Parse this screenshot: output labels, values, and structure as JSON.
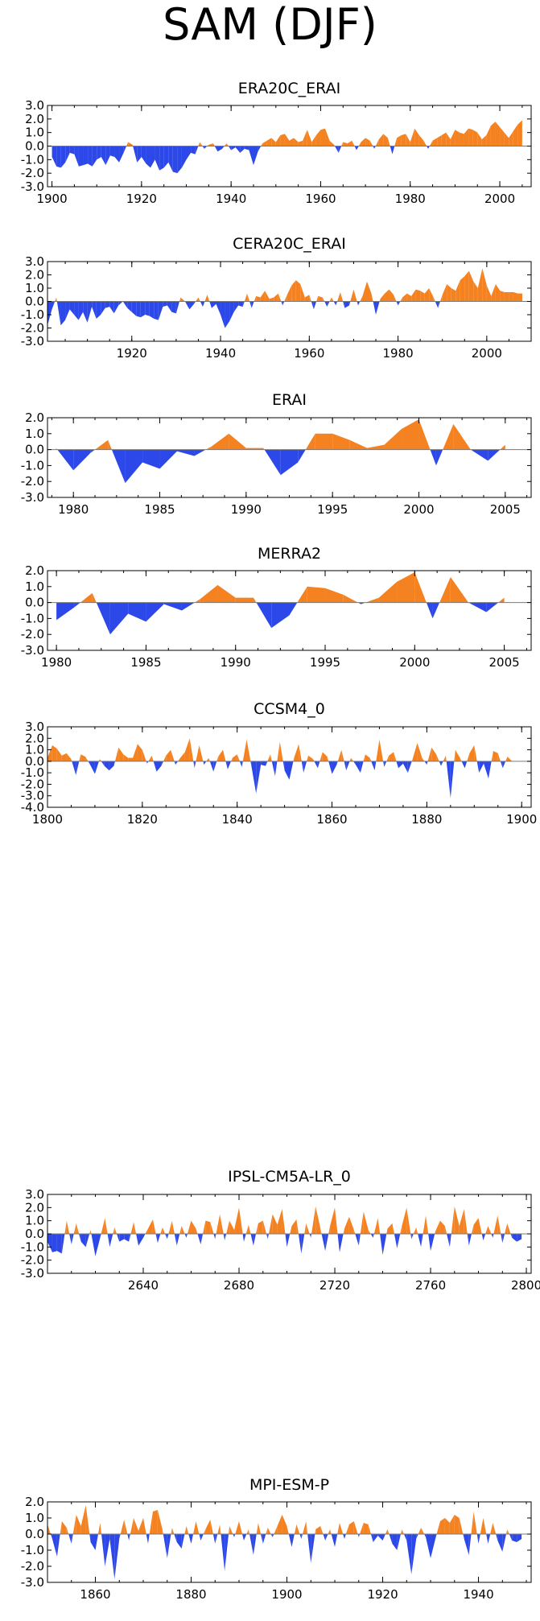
{
  "figure": {
    "title": "SAM (DJF)"
  },
  "colors": {
    "positive": "#f58220",
    "negative": "#2d48e8",
    "axis": "#000000",
    "zero_line": "#7a7a7a"
  },
  "chart_data": [
    {
      "type": "area",
      "title": "ERA20C_ERAI",
      "xlim": [
        1899,
        2007
      ],
      "ylim": [
        -3,
        3
      ],
      "xticks": [
        1900,
        1920,
        1940,
        1960,
        1980,
        2000
      ],
      "yticks": [
        3.0,
        2.0,
        1.0,
        0.0,
        -1.0,
        -2.0,
        -3.0
      ],
      "ytick_labels": [
        "3.0",
        "2.0",
        "1.0",
        "0.0",
        "-1.0",
        "-2.0",
        "-3.0"
      ],
      "x": [
        1900,
        1901,
        1902,
        1903,
        1904,
        1905,
        1906,
        1907,
        1908,
        1909,
        1910,
        1911,
        1912,
        1913,
        1914,
        1915,
        1916,
        1917,
        1918,
        1919,
        1920,
        1921,
        1922,
        1923,
        1924,
        1925,
        1926,
        1927,
        1928,
        1929,
        1930,
        1931,
        1932,
        1933,
        1934,
        1935,
        1936,
        1937,
        1938,
        1939,
        1940,
        1941,
        1942,
        1943,
        1944,
        1945,
        1946,
        1947,
        1948,
        1949,
        1950,
        1951,
        1952,
        1953,
        1954,
        1955,
        1956,
        1957,
        1958,
        1959,
        1960,
        1961,
        1962,
        1963,
        1964,
        1965,
        1966,
        1967,
        1968,
        1969,
        1970,
        1971,
        1972,
        1973,
        1974,
        1975,
        1976,
        1977,
        1978,
        1979,
        1980,
        1981,
        1982,
        1983,
        1984,
        1985,
        1986,
        1987,
        1988,
        1989,
        1990,
        1991,
        1992,
        1993,
        1994,
        1995,
        1996,
        1997,
        1998,
        1999,
        2000,
        2001,
        2002,
        2003,
        2004,
        2005
      ],
      "values": [
        -0.8,
        -1.5,
        -1.6,
        -1.2,
        -0.5,
        -0.6,
        -1.5,
        -1.4,
        -1.3,
        -1.5,
        -1.0,
        -0.8,
        -1.4,
        -0.7,
        -0.8,
        -1.2,
        -0.5,
        0.3,
        0.1,
        -1.2,
        -0.8,
        -1.3,
        -1.6,
        -1.0,
        -1.8,
        -1.6,
        -1.2,
        -1.9,
        -2.0,
        -1.6,
        -1.0,
        -0.5,
        -0.6,
        0.3,
        -0.2,
        0.1,
        0.2,
        -0.4,
        -0.2,
        0.2,
        -0.3,
        -0.1,
        -0.5,
        -0.2,
        -0.3,
        -1.4,
        -0.4,
        0.2,
        0.4,
        0.6,
        0.3,
        0.8,
        0.9,
        0.4,
        0.6,
        0.3,
        0.4,
        1.2,
        0.3,
        0.8,
        1.2,
        1.3,
        0.4,
        0.1,
        -0.5,
        0.3,
        0.2,
        0.4,
        -0.3,
        0.3,
        0.6,
        0.4,
        -0.2,
        0.5,
        0.9,
        0.6,
        -0.6,
        0.6,
        0.8,
        0.9,
        0.3,
        1.3,
        0.8,
        0.4,
        -0.2,
        0.4,
        0.6,
        0.8,
        1.0,
        0.5,
        1.2,
        1.0,
        0.9,
        1.3,
        1.2,
        1.0,
        0.5,
        0.8,
        1.5,
        1.8,
        1.4,
        1.0,
        0.6,
        1.1,
        1.6,
        1.9
      ],
      "y_range_shown": [
        -3,
        3
      ]
    },
    {
      "type": "area",
      "title": "CERA20C_ERAI",
      "xlim": [
        1901,
        2010
      ],
      "ylim": [
        -3,
        3
      ],
      "xticks": [
        1920,
        1940,
        1960,
        1980,
        2000
      ],
      "yticks": [
        3.0,
        2.0,
        1.0,
        0.0,
        -1.0,
        -2.0,
        -3.0
      ],
      "ytick_labels": [
        "3.0",
        "2.0",
        "1.0",
        "0.0",
        "-1.0",
        "-2.0",
        "-3.0"
      ],
      "x": [
        1901,
        1902,
        1903,
        1904,
        1905,
        1906,
        1907,
        1908,
        1909,
        1910,
        1911,
        1912,
        1913,
        1914,
        1915,
        1916,
        1917,
        1918,
        1919,
        1920,
        1921,
        1922,
        1923,
        1924,
        1925,
        1926,
        1927,
        1928,
        1929,
        1930,
        1931,
        1932,
        1933,
        1934,
        1935,
        1936,
        1937,
        1938,
        1939,
        1940,
        1941,
        1942,
        1943,
        1944,
        1945,
        1946,
        1947,
        1948,
        1949,
        1950,
        1951,
        1952,
        1953,
        1954,
        1955,
        1956,
        1957,
        1958,
        1959,
        1960,
        1961,
        1962,
        1963,
        1964,
        1965,
        1966,
        1967,
        1968,
        1969,
        1970,
        1971,
        1972,
        1973,
        1974,
        1975,
        1976,
        1977,
        1978,
        1979,
        1980,
        1981,
        1982,
        1983,
        1984,
        1985,
        1986,
        1987,
        1988,
        1989,
        1990,
        1991,
        1992,
        1993,
        1994,
        1995,
        1996,
        1997,
        1998,
        1999,
        2000,
        2001,
        2002,
        2003,
        2004,
        2005,
        2006,
        2007,
        2008
      ],
      "values": [
        -1.8,
        -0.6,
        0.3,
        -1.8,
        -1.4,
        -0.6,
        -1.0,
        -1.4,
        -0.8,
        -1.6,
        -0.4,
        -1.3,
        -1.0,
        -0.5,
        -0.4,
        -0.9,
        -0.3,
        0.0,
        -0.5,
        -0.8,
        -1.1,
        -1.2,
        -1.0,
        -1.1,
        -1.3,
        -1.4,
        -0.4,
        -0.3,
        -0.8,
        -0.9,
        0.3,
        0.0,
        -0.6,
        -0.2,
        0.3,
        -0.4,
        0.5,
        -0.5,
        -0.2,
        -1.0,
        -2.0,
        -1.5,
        -0.8,
        -0.3,
        -0.4,
        0.6,
        -0.5,
        0.4,
        0.3,
        0.8,
        0.2,
        0.3,
        0.6,
        -0.3,
        0.5,
        1.2,
        1.6,
        1.3,
        0.3,
        0.5,
        -0.6,
        0.4,
        0.3,
        -0.4,
        0.3,
        -0.3,
        0.7,
        -0.5,
        -0.3,
        0.9,
        -0.3,
        0.4,
        1.5,
        0.6,
        -1.0,
        0.2,
        0.6,
        0.9,
        0.5,
        -0.3,
        0.3,
        0.6,
        0.4,
        0.9,
        0.8,
        0.6,
        1.0,
        0.3,
        -0.5,
        0.5,
        1.3,
        1.0,
        0.8,
        1.6,
        1.9,
        2.3,
        1.5,
        1.0,
        2.5,
        1.2,
        0.4,
        1.3,
        0.8,
        0.7,
        0.7,
        0.7,
        0.6,
        0.6
      ],
      "y_range_shown": [
        -3,
        3
      ]
    },
    {
      "type": "area",
      "title": "ERAI",
      "xlim": [
        1978.5,
        2006.5
      ],
      "ylim": [
        -3,
        2
      ],
      "xticks": [
        1980,
        1985,
        1990,
        1995,
        2000,
        2005
      ],
      "yticks": [
        2.0,
        1.0,
        0.0,
        -1.0,
        -2.0,
        -3.0
      ],
      "ytick_labels": [
        "2.0",
        "1.0",
        "0.0",
        "-1.0",
        "-2.0",
        "-3.0"
      ],
      "x": [
        1979,
        1980,
        1981,
        1982,
        1983,
        1984,
        1985,
        1986,
        1987,
        1988,
        1989,
        1990,
        1991,
        1992,
        1993,
        1994,
        1995,
        1996,
        1997,
        1998,
        1999,
        2000,
        2001,
        2002,
        2003,
        2004,
        2005
      ],
      "values": [
        0.1,
        -1.3,
        -0.2,
        0.6,
        -2.1,
        -0.8,
        -1.2,
        -0.1,
        -0.4,
        0.2,
        1.0,
        0.1,
        0.1,
        -1.6,
        -0.8,
        1.0,
        1.0,
        0.6,
        0.1,
        0.3,
        1.3,
        1.9,
        -1.0,
        1.6,
        0.0,
        -0.7,
        0.3
      ]
    },
    {
      "type": "area",
      "title": "MERRA2",
      "xlim": [
        1979.5,
        2006.5
      ],
      "ylim": [
        -3,
        2
      ],
      "xticks": [
        1980,
        1985,
        1990,
        1995,
        2000,
        2005
      ],
      "yticks": [
        2.0,
        1.0,
        0.0,
        -1.0,
        -2.0,
        -3.0
      ],
      "ytick_labels": [
        "2.0",
        "1.0",
        "0.0",
        "-1.0",
        "-2.0",
        "-3.0"
      ],
      "x": [
        1980,
        1981,
        1982,
        1983,
        1984,
        1985,
        1986,
        1987,
        1988,
        1989,
        1990,
        1991,
        1992,
        1993,
        1994,
        1995,
        1996,
        1997,
        1998,
        1999,
        2000,
        2001,
        2002,
        2003,
        2004,
        2005
      ],
      "values": [
        -1.1,
        -0.3,
        0.6,
        -2.0,
        -0.7,
        -1.2,
        -0.1,
        -0.5,
        0.2,
        1.1,
        0.3,
        0.3,
        -1.6,
        -0.8,
        1.0,
        0.9,
        0.5,
        -0.1,
        0.3,
        1.3,
        1.9,
        -1.0,
        1.6,
        0.0,
        -0.6,
        0.3
      ]
    },
    {
      "type": "area",
      "title": "CCSM4_0",
      "xlim": [
        1800,
        1902
      ],
      "ylim": [
        -4,
        3
      ],
      "xticks": [
        1800,
        1820,
        1840,
        1860,
        1880,
        1900
      ],
      "yticks": [
        3.0,
        2.0,
        1.0,
        0.0,
        -1.0,
        -2.0,
        -3.0,
        -4.0
      ],
      "ytick_labels": [
        "3.0",
        "2.0",
        "1.0",
        "0.0",
        "-1.0",
        "-2.0",
        "-3.0",
        "-4.0"
      ],
      "x": [
        1800,
        1801,
        1802,
        1803,
        1804,
        1805,
        1806,
        1807,
        1808,
        1809,
        1810,
        1811,
        1812,
        1813,
        1814,
        1815,
        1816,
        1817,
        1818,
        1819,
        1820,
        1821,
        1822,
        1823,
        1824,
        1825,
        1826,
        1827,
        1828,
        1829,
        1830,
        1831,
        1832,
        1833,
        1834,
        1835,
        1836,
        1837,
        1838,
        1839,
        1840,
        1841,
        1842,
        1843,
        1844,
        1845,
        1846,
        1847,
        1848,
        1849,
        1850,
        1851,
        1852,
        1853,
        1854,
        1855,
        1856,
        1857,
        1858,
        1859,
        1860,
        1861,
        1862,
        1863,
        1864,
        1865,
        1866,
        1867,
        1868,
        1869,
        1870,
        1871,
        1872,
        1873,
        1874,
        1875,
        1876,
        1877,
        1878,
        1879,
        1880,
        1881,
        1882,
        1883,
        1884,
        1885,
        1886,
        1887,
        1888,
        1889,
        1890,
        1891,
        1892,
        1893,
        1894,
        1895,
        1896,
        1897,
        1898
      ],
      "values": [
        0.3,
        1.4,
        1.1,
        0.5,
        0.7,
        0.2,
        -1.2,
        0.6,
        0.4,
        -0.3,
        -1.1,
        0.2,
        -0.4,
        -0.8,
        -0.4,
        1.2,
        0.6,
        0.3,
        0.3,
        1.5,
        1.0,
        -0.2,
        0.5,
        -0.9,
        -0.4,
        0.5,
        1.0,
        -0.3,
        0.3,
        0.8,
        2.0,
        -0.6,
        1.4,
        -0.3,
        0.3,
        -0.9,
        0.4,
        1.0,
        -0.7,
        0.3,
        0.6,
        -0.5,
        1.9,
        -0.4,
        -2.8,
        -0.3,
        -0.4,
        0.6,
        -1.3,
        1.7,
        -0.8,
        -1.6,
        0.3,
        1.5,
        -1.0,
        0.5,
        0.2,
        -0.6,
        0.8,
        0.4,
        -1.1,
        -0.3,
        1.0,
        -0.8,
        0.3,
        -0.3,
        -1.0,
        0.6,
        0.3,
        -0.8,
        1.9,
        -0.5,
        0.5,
        0.8,
        -0.6,
        -0.2,
        -1.0,
        0.2,
        1.6,
        0.3,
        -0.3,
        1.2,
        0.6,
        -0.4,
        0.5,
        -3.2,
        1.0,
        0.3,
        -0.6,
        0.7,
        1.4,
        -1.0,
        -0.2,
        -1.5,
        0.9,
        0.7,
        -0.6,
        0.4,
        0.0
      ],
      "y_range_shown": [
        -4,
        3
      ]
    },
    {
      "type": "area",
      "title": "IPSL-CM5A-LR_0",
      "xlim": [
        2600,
        2802
      ],
      "ylim": [
        -3,
        3
      ],
      "xticks": [
        2640,
        2680,
        2720,
        2760,
        2800
      ],
      "yticks": [
        3.0,
        2.0,
        1.0,
        0.0,
        -1.0,
        -2.0,
        -3.0
      ],
      "ytick_labels": [
        "3.0",
        "2.0",
        "1.0",
        "0.0",
        "-1.0",
        "-2.0",
        "-3.0"
      ],
      "x": [
        2600,
        2602,
        2604,
        2606,
        2608,
        2610,
        2612,
        2614,
        2616,
        2618,
        2620,
        2622,
        2624,
        2626,
        2628,
        2630,
        2632,
        2634,
        2636,
        2638,
        2640,
        2642,
        2644,
        2646,
        2648,
        2650,
        2652,
        2654,
        2656,
        2658,
        2660,
        2662,
        2664,
        2666,
        2668,
        2670,
        2672,
        2674,
        2676,
        2678,
        2680,
        2682,
        2684,
        2686,
        2688,
        2690,
        2692,
        2694,
        2696,
        2698,
        2700,
        2702,
        2704,
        2706,
        2708,
        2710,
        2712,
        2714,
        2716,
        2718,
        2720,
        2722,
        2724,
        2726,
        2728,
        2730,
        2732,
        2734,
        2736,
        2738,
        2740,
        2742,
        2744,
        2746,
        2748,
        2750,
        2752,
        2754,
        2756,
        2758,
        2760,
        2762,
        2764,
        2766,
        2768,
        2770,
        2772,
        2774,
        2776,
        2778,
        2780,
        2782,
        2784,
        2786,
        2788,
        2790,
        2792,
        2794,
        2796,
        2798
      ],
      "values": [
        -0.6,
        -1.4,
        -1.3,
        -1.5,
        1.0,
        -0.8,
        0.8,
        -0.6,
        -1.0,
        0.3,
        -1.7,
        -0.3,
        1.2,
        -1.0,
        0.5,
        -0.6,
        -0.4,
        -0.6,
        0.9,
        -0.9,
        -0.3,
        0.4,
        1.1,
        -0.7,
        0.5,
        -0.4,
        1.0,
        -0.9,
        0.6,
        -0.3,
        1.0,
        0.4,
        -0.8,
        1.0,
        0.9,
        -0.4,
        1.5,
        -0.5,
        1.0,
        0.3,
        2.0,
        -0.6,
        0.7,
        -0.9,
        0.8,
        1.0,
        -0.4,
        1.5,
        0.7,
        1.9,
        -1.0,
        0.6,
        1.1,
        -1.5,
        0.8,
        -0.3,
        2.1,
        0.4,
        -1.3,
        0.6,
        2.0,
        -1.4,
        0.4,
        1.3,
        0.3,
        -0.9,
        1.7,
        0.3,
        -0.3,
        1.2,
        -1.6,
        0.4,
        0.8,
        -1.1,
        0.6,
        2.0,
        -0.4,
        0.5,
        -1.0,
        1.4,
        -1.3,
        0.2,
        1.0,
        0.6,
        -1.0,
        2.1,
        0.6,
        1.9,
        -0.9,
        0.7,
        1.2,
        -0.5,
        0.6,
        -0.3,
        1.4,
        -0.7,
        0.8,
        -0.3,
        -0.6,
        -0.4
      ],
      "y_range_shown": [
        -3,
        3
      ]
    },
    {
      "type": "area",
      "title": "MPI-ESM-P",
      "xlim": [
        1850,
        1951
      ],
      "ylim": [
        -3,
        2
      ],
      "xticks": [
        1860,
        1880,
        1900,
        1920,
        1940
      ],
      "yticks": [
        2.0,
        1.0,
        0.0,
        -1.0,
        -2.0,
        -3.0
      ],
      "ytick_labels": [
        "2.0",
        "1.0",
        "0.0",
        "-1.0",
        "-2.0",
        "-3.0"
      ],
      "x": [
        1850,
        1851,
        1852,
        1853,
        1854,
        1855,
        1856,
        1857,
        1858,
        1859,
        1860,
        1861,
        1862,
        1863,
        1864,
        1865,
        1866,
        1867,
        1868,
        1869,
        1870,
        1871,
        1872,
        1873,
        1874,
        1875,
        1876,
        1877,
        1878,
        1879,
        1880,
        1881,
        1882,
        1883,
        1884,
        1885,
        1886,
        1887,
        1888,
        1889,
        1890,
        1891,
        1892,
        1893,
        1894,
        1895,
        1896,
        1897,
        1898,
        1899,
        1900,
        1901,
        1902,
        1903,
        1904,
        1905,
        1906,
        1907,
        1908,
        1909,
        1910,
        1911,
        1912,
        1913,
        1914,
        1915,
        1916,
        1917,
        1918,
        1919,
        1920,
        1921,
        1922,
        1923,
        1924,
        1925,
        1926,
        1927,
        1928,
        1929,
        1930,
        1931,
        1932,
        1933,
        1934,
        1935,
        1936,
        1937,
        1938,
        1939,
        1940,
        1941,
        1942,
        1943,
        1944,
        1945,
        1946,
        1947,
        1948,
        1949
      ],
      "values": [
        0.6,
        -0.3,
        -1.4,
        0.8,
        0.4,
        -0.6,
        1.2,
        0.5,
        1.8,
        -0.5,
        -1.0,
        0.7,
        -2.0,
        -0.3,
        -2.8,
        -0.3,
        0.9,
        -0.4,
        1.0,
        0.2,
        1.0,
        -0.6,
        1.4,
        1.5,
        0.3,
        -1.5,
        0.4,
        -0.5,
        -0.9,
        0.5,
        -0.6,
        0.8,
        -0.4,
        0.3,
        0.9,
        -0.6,
        0.6,
        -2.3,
        0.5,
        -0.2,
        0.8,
        -0.4,
        0.3,
        -1.3,
        0.7,
        -0.6,
        0.4,
        -0.2,
        0.5,
        1.2,
        0.5,
        -0.8,
        0.6,
        -0.3,
        0.8,
        -1.8,
        0.3,
        0.5,
        -0.4,
        0.3,
        -0.8,
        0.7,
        -0.3,
        0.6,
        0.8,
        -0.2,
        0.7,
        0.6,
        -0.5,
        -0.1,
        -0.4,
        0.3,
        -0.6,
        -1.0,
        0.3,
        -0.4,
        -2.5,
        -0.3,
        0.4,
        -0.2,
        -1.5,
        -0.3,
        0.8,
        1.0,
        0.7,
        1.2,
        1.0,
        -0.3,
        -1.3,
        1.4,
        -0.6,
        1.0,
        -0.6,
        0.7,
        -0.4,
        -1.1,
        0.3,
        -0.4,
        -0.5,
        -0.3
      ],
      "y_range_shown": [
        -3,
        2
      ]
    }
  ]
}
